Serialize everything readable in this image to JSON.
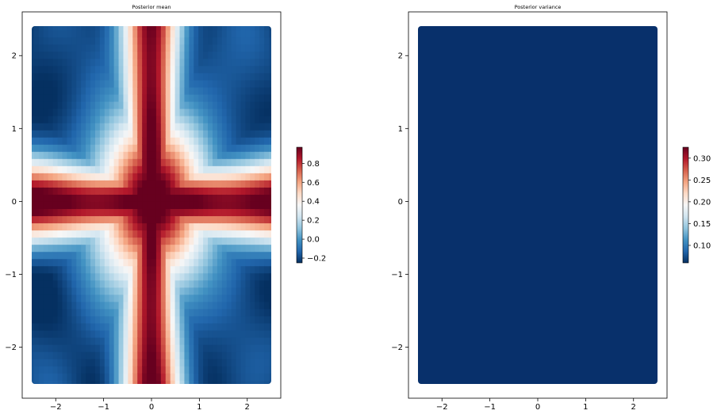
{
  "chart_data": [
    {
      "type": "heatmap",
      "title": "Posterior mean",
      "x_ticks": [
        -2,
        -1,
        0,
        1,
        2
      ],
      "y_ticks": [
        -2,
        -1,
        0,
        1,
        2
      ],
      "xlim": [
        -2.7,
        2.7
      ],
      "ylim": [
        -2.7,
        2.6
      ],
      "data_extent": [
        -2.55,
        2.55,
        -2.55,
        2.55
      ],
      "colormap": "RdBu_r",
      "colorbar": {
        "min": -0.25,
        "max": 0.97,
        "ticks": [
          -0.2,
          0.0,
          0.2,
          0.4,
          0.6,
          0.8
        ]
      },
      "field_description": "cross-shaped ridge of high values (~0.95) along x=0 and y=0, low values (~-0.2) in the quadrants",
      "grid": false
    },
    {
      "type": "heatmap",
      "title": "Posterior variance",
      "x_ticks": [
        -2,
        -1,
        0,
        1,
        2
      ],
      "y_ticks": [
        -2,
        -1,
        0,
        1,
        2
      ],
      "xlim": [
        -2.7,
        2.7
      ],
      "ylim": [
        -2.7,
        2.6
      ],
      "data_extent": [
        -2.55,
        2.55,
        -2.55,
        2.55
      ],
      "colormap": "RdBu_r",
      "colorbar": {
        "min": 0.06,
        "max": 0.325,
        "ticks": [
          0.1,
          0.15,
          0.2,
          0.25,
          0.3
        ]
      },
      "uniform_value": 0.06,
      "grid": false
    }
  ],
  "colors": {
    "rdbu": [
      "#053061",
      "#2166ac",
      "#4393c3",
      "#92c5de",
      "#d1e5f0",
      "#f7f7f7",
      "#fddbc7",
      "#f4a582",
      "#d6604d",
      "#b2182b",
      "#67001f"
    ],
    "axis": "#000000",
    "background": "#ffffff"
  }
}
